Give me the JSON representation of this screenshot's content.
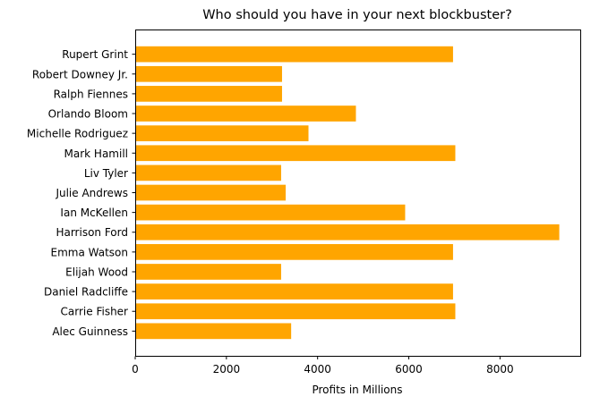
{
  "chart_data": {
    "type": "bar",
    "orientation": "horizontal",
    "title": "Who should you have in your next blockbuster?",
    "xlabel": "Profits in Millions",
    "ylabel": "",
    "xlim": [
      0,
      9760
    ],
    "xticks": [
      0,
      2000,
      4000,
      6000,
      8000
    ],
    "grid": false,
    "bar_color": "#FFA500",
    "categories": [
      "Alec Guinness",
      "Carrie Fisher",
      "Daniel Radcliffe",
      "Elijah Wood",
      "Emma Watson",
      "Harrison Ford",
      "Ian McKellen",
      "Julie Andrews",
      "Liv Tyler",
      "Mark Hamill",
      "Michelle Rodriguez",
      "Orlando Bloom",
      "Ralph Fiennes",
      "Robert Downey Jr.",
      "Rupert Grint"
    ],
    "values": [
      3420,
      7020,
      6970,
      3200,
      6970,
      9300,
      5920,
      3300,
      3200,
      7020,
      3800,
      4840,
      3220,
      3220,
      6970
    ]
  }
}
